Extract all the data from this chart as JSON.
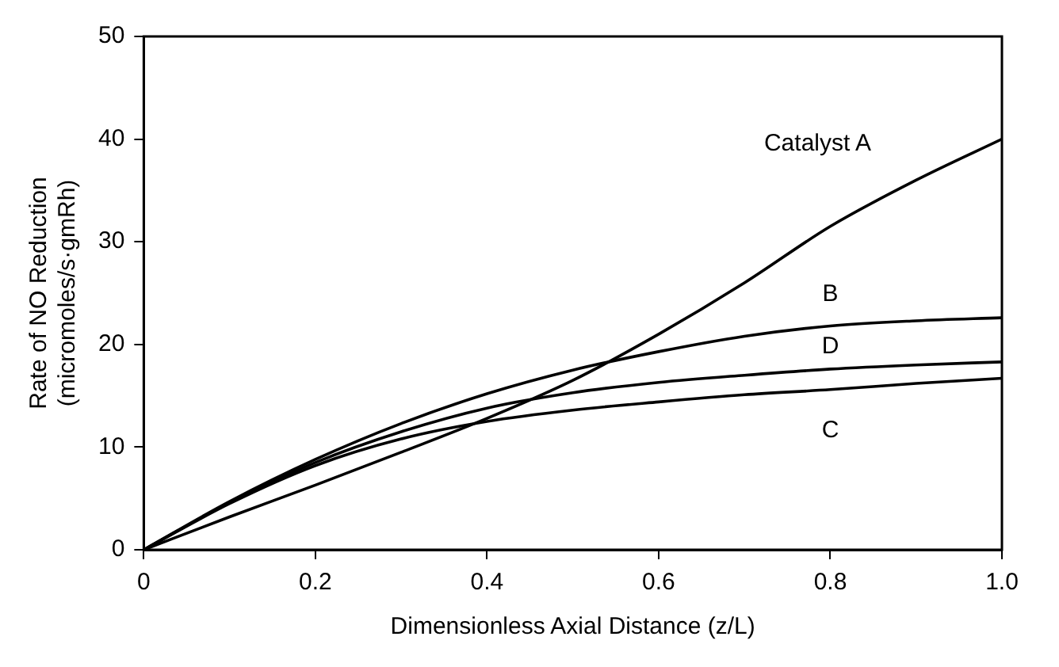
{
  "chart_data": {
    "type": "line",
    "xlabel": "Dimensionless Axial Distance (z/L)",
    "ylabel": "Rate of NO Reduction\n(micromoles/s·gmRh)",
    "x": [
      0,
      0.1,
      0.2,
      0.3,
      0.4,
      0.5,
      0.6,
      0.7,
      0.8,
      0.9,
      1.0
    ],
    "series": [
      {
        "name": "Catalyst A",
        "color": "#000000",
        "values": [
          0,
          3.2,
          6.3,
          9.5,
          12.8,
          16.5,
          21,
          26,
          31.5,
          36,
          40
        ]
      },
      {
        "name": "B",
        "color": "#000000",
        "values": [
          0,
          4.7,
          8.8,
          12.3,
          15.2,
          17.5,
          19.3,
          20.8,
          21.8,
          22.3,
          22.6
        ]
      },
      {
        "name": "D",
        "color": "#000000",
        "values": [
          0,
          4.6,
          8.5,
          11.5,
          13.8,
          15.3,
          16.3,
          17,
          17.6,
          18,
          18.3
        ]
      },
      {
        "name": "C",
        "color": "#000000",
        "values": [
          0,
          4.5,
          8.2,
          10.8,
          12.5,
          13.6,
          14.4,
          15.1,
          15.6,
          16.2,
          16.7
        ]
      }
    ],
    "xlim": [
      0,
      1.0
    ],
    "xticks": [
      0,
      {
        "value": 0.2,
        "label": "0.2"
      },
      {
        "value": 0.4,
        "label": "0.4"
      },
      {
        "value": 0.6,
        "label": "0.6"
      },
      {
        "value": 0.8,
        "label": "0.8"
      },
      {
        "value": 1.0,
        "label": "1.0"
      }
    ],
    "ylim": [
      0,
      50
    ],
    "yticks": [
      0,
      10,
      20,
      30,
      40,
      50
    ],
    "grid": false,
    "legend": false,
    "marker": "none",
    "line_style": "solid"
  }
}
